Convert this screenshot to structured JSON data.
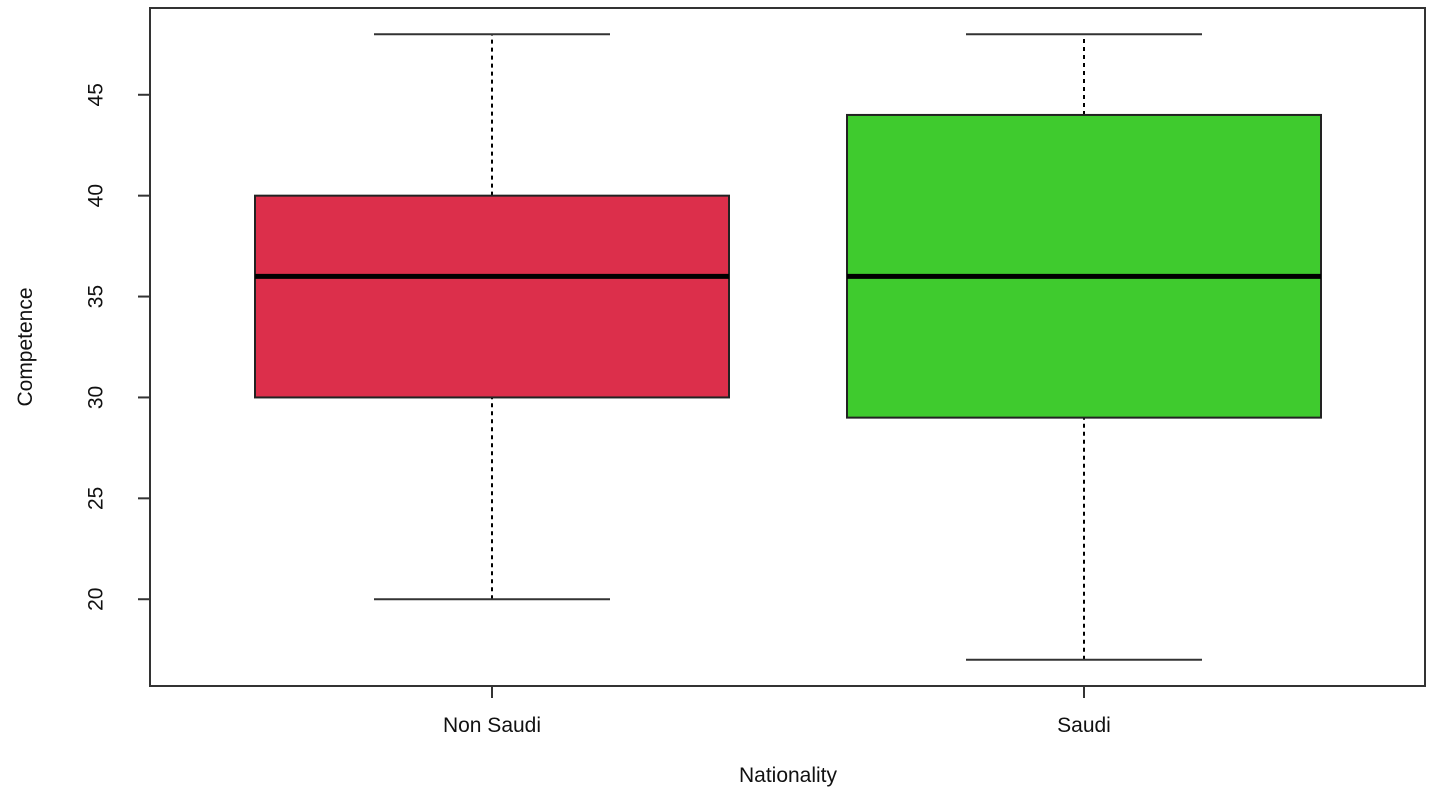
{
  "chart_data": {
    "type": "boxplot",
    "title": "",
    "xlabel": "Nationality",
    "ylabel": "Competence",
    "categories": [
      "Non Saudi",
      "Saudi"
    ],
    "boxes": [
      {
        "category": "Non Saudi",
        "min": 20,
        "q1": 30,
        "median": 36,
        "q3": 40,
        "max": 48,
        "color": "#DC2F4B"
      },
      {
        "category": "Saudi",
        "min": 17,
        "q1": 29,
        "median": 36,
        "q3": 44,
        "max": 48,
        "color": "#3FCB2E"
      }
    ],
    "ylim": [
      15.7,
      49.3
    ],
    "yticks": [
      20,
      25,
      30,
      35,
      40,
      45
    ],
    "grid": false,
    "legend": "none"
  }
}
